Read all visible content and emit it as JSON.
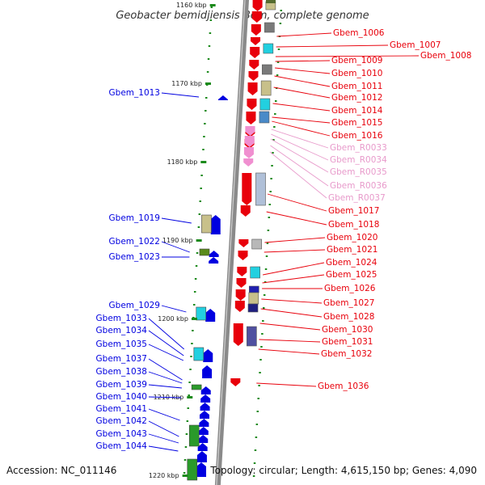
{
  "title": "Geobacter bemidjiensis Bem, complete genome",
  "accession": "Accession: NC_011146",
  "topology": "Topology: circular; Length: 4,615,150 bp; Genes: 4,090",
  "ticks": [
    "1160 kbp",
    "1170 kbp",
    "1180 kbp",
    "1190 kbp",
    "1200 kbp",
    "1210 kbp",
    "1220 kbp"
  ],
  "colors": {
    "forward": "#e8000b",
    "reverse": "#0000e0",
    "rna": "#f08fd0",
    "rna_label": "#e89acb",
    "backbone": "#909090"
  },
  "right_labels": [
    "Gbem_1006",
    "Gbem_1007",
    "Gbem_1008",
    "Gbem_1009",
    "Gbem_1010",
    "Gbem_1011",
    "Gbem_1012",
    "Gbem_1014",
    "Gbem_1015",
    "Gbem_1016",
    "Gbem_R0033",
    "Gbem_R0034",
    "Gbem_R0035",
    "Gbem_R0036",
    "Gbem_R0037",
    "Gbem_1017",
    "Gbem_1018",
    "Gbem_1020",
    "Gbem_1021",
    "Gbem_1024",
    "Gbem_1025",
    "Gbem_1026",
    "Gbem_1027",
    "Gbem_1028",
    "Gbem_1030",
    "Gbem_1031",
    "Gbem_1032",
    "Gbem_1036"
  ],
  "left_labels": [
    "Gbem_1013",
    "Gbem_1019",
    "Gbem_1022",
    "Gbem_1023",
    "Gbem_1029",
    "Gbem_1033",
    "Gbem_1034",
    "Gbem_1035",
    "Gbem_1037",
    "Gbem_1038",
    "Gbem_1039",
    "Gbem_1040",
    "Gbem_1041",
    "Gbem_1042",
    "Gbem_1043",
    "Gbem_1044"
  ]
}
